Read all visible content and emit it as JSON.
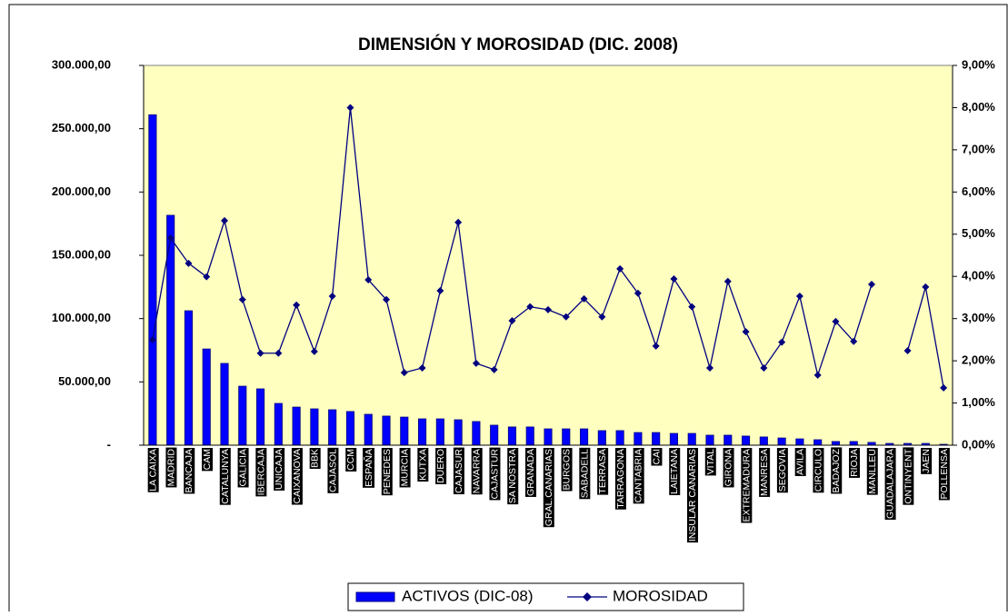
{
  "chart_data": {
    "type": "bar-line",
    "title": "DIMENSIÓN Y MOROSIDAD (DIC. 2008)",
    "categories": [
      "LA CAIXA",
      "MADRID",
      "BANCAJA",
      "CAM",
      "CATALUNYA",
      "GALICIA",
      "IBERCAJA",
      "UNICAJA",
      "CAIXANOVA",
      "BBK",
      "CAJASOL",
      "CCM",
      "ESPAÑA",
      "PENEDES",
      "MURCIA",
      "KUTXA",
      "DUERO",
      "CAJASUR",
      "NAVARRA",
      "CAJASTUR",
      "SA NOSTRA",
      "GRANADA",
      "GRAL.CANARIAS",
      "BURGOS",
      "SABADELL",
      "TERRASA",
      "TARRAGONA",
      "CANTABRIA",
      "CAI",
      "LAIETANA",
      "INSULAR CANARIAS",
      "VITAL",
      "GIRONA",
      "EXTREMADURA",
      "MANRESA",
      "SEGOVIA",
      "AVILA",
      "CIRCULO",
      "BADAJOZ",
      "RIOJA",
      "MANLLEU",
      "GUADALAJARA",
      "ONTINYENT",
      "JAEN",
      "POLLENSA"
    ],
    "series": [
      {
        "name": "ACTIVOS (DIC-08)",
        "type": "bar",
        "color": "#0000ff",
        "values": [
          261000,
          181600,
          106200,
          76000,
          64600,
          46600,
          44500,
          33000,
          30100,
          28700,
          28000,
          26600,
          24400,
          23000,
          22200,
          20800,
          20800,
          20100,
          18700,
          15800,
          14400,
          14400,
          12900,
          12900,
          12900,
          11500,
          11500,
          10000,
          10000,
          9300,
          9300,
          7900,
          7900,
          7200,
          6500,
          5700,
          5000,
          4300,
          2900,
          2900,
          2200,
          1400,
          1400,
          1400,
          700
        ]
      },
      {
        "name": "MOROSIDAD",
        "type": "line",
        "axis": "y2",
        "color": "#000080",
        "values": [
          2.5,
          4.91,
          4.31,
          3.99,
          5.32,
          3.45,
          2.18,
          2.18,
          3.32,
          2.22,
          3.53,
          8.0,
          3.92,
          3.45,
          1.72,
          1.83,
          3.66,
          5.28,
          1.94,
          1.79,
          2.95,
          3.28,
          3.21,
          3.04,
          3.47,
          3.04,
          4.18,
          3.6,
          2.35,
          3.94,
          3.28,
          1.83,
          3.88,
          2.69,
          1.83,
          2.44,
          3.53,
          1.66,
          2.93,
          2.46,
          3.81,
          null,
          2.24,
          3.75,
          1.36
        ]
      }
    ],
    "ylim": [
      0,
      300000
    ],
    "yticks": [
      {
        "value": 0,
        "label": "-"
      },
      {
        "value": 50000,
        "label": "50.000,00"
      },
      {
        "value": 100000,
        "label": "100.000,00"
      },
      {
        "value": 150000,
        "label": "150.000,00"
      },
      {
        "value": 200000,
        "label": "200.000,00"
      },
      {
        "value": 250000,
        "label": "250.000,00"
      },
      {
        "value": 300000,
        "label": "300.000,00"
      }
    ],
    "y2lim": [
      0,
      9
    ],
    "y2ticks": [
      {
        "value": 0,
        "label": "0,00%"
      },
      {
        "value": 1,
        "label": "1,00%"
      },
      {
        "value": 2,
        "label": "2,00%"
      },
      {
        "value": 3,
        "label": "3,00%"
      },
      {
        "value": 4,
        "label": "4,00%"
      },
      {
        "value": 5,
        "label": "5,00%"
      },
      {
        "value": 6,
        "label": "6,00%"
      },
      {
        "value": 7,
        "label": "7,00%"
      },
      {
        "value": 8,
        "label": "8,00%"
      },
      {
        "value": 9,
        "label": "9,00%"
      }
    ],
    "plot_background": "#ffffc0",
    "legend": "bottom"
  }
}
